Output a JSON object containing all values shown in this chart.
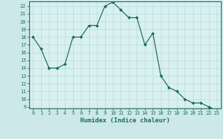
{
  "x": [
    0,
    1,
    2,
    3,
    4,
    5,
    6,
    7,
    8,
    9,
    10,
    11,
    12,
    13,
    14,
    15,
    16,
    17,
    18,
    19,
    20,
    21,
    22,
    23
  ],
  "y": [
    18,
    16.5,
    14,
    14,
    14.5,
    18,
    18,
    19.5,
    19.5,
    22,
    22.5,
    21.5,
    20.5,
    20.5,
    17,
    18.5,
    13,
    11.5,
    11,
    10,
    9.5,
    9.5,
    9,
    8.5
  ],
  "line_color": "#1a6b5a",
  "marker": "D",
  "marker_size": 2.0,
  "bg_color": "#cce8e8",
  "plot_bg_color": "#d8f0f0",
  "grid_color": "#b8d8d8",
  "xlabel": "Humidex (Indice chaleur)",
  "xlim": [
    -0.5,
    23.5
  ],
  "ylim": [
    8.8,
    22.6
  ],
  "yticks": [
    9,
    10,
    11,
    12,
    13,
    14,
    15,
    16,
    17,
    18,
    19,
    20,
    21,
    22
  ],
  "xticks": [
    0,
    1,
    2,
    3,
    4,
    5,
    6,
    7,
    8,
    9,
    10,
    11,
    12,
    13,
    14,
    15,
    16,
    17,
    18,
    19,
    20,
    21,
    22,
    23
  ],
  "tick_fontsize": 5.0,
  "xlabel_fontsize": 6.5,
  "axis_color": "#1a6b5a",
  "spine_color": "#1a6b5a"
}
